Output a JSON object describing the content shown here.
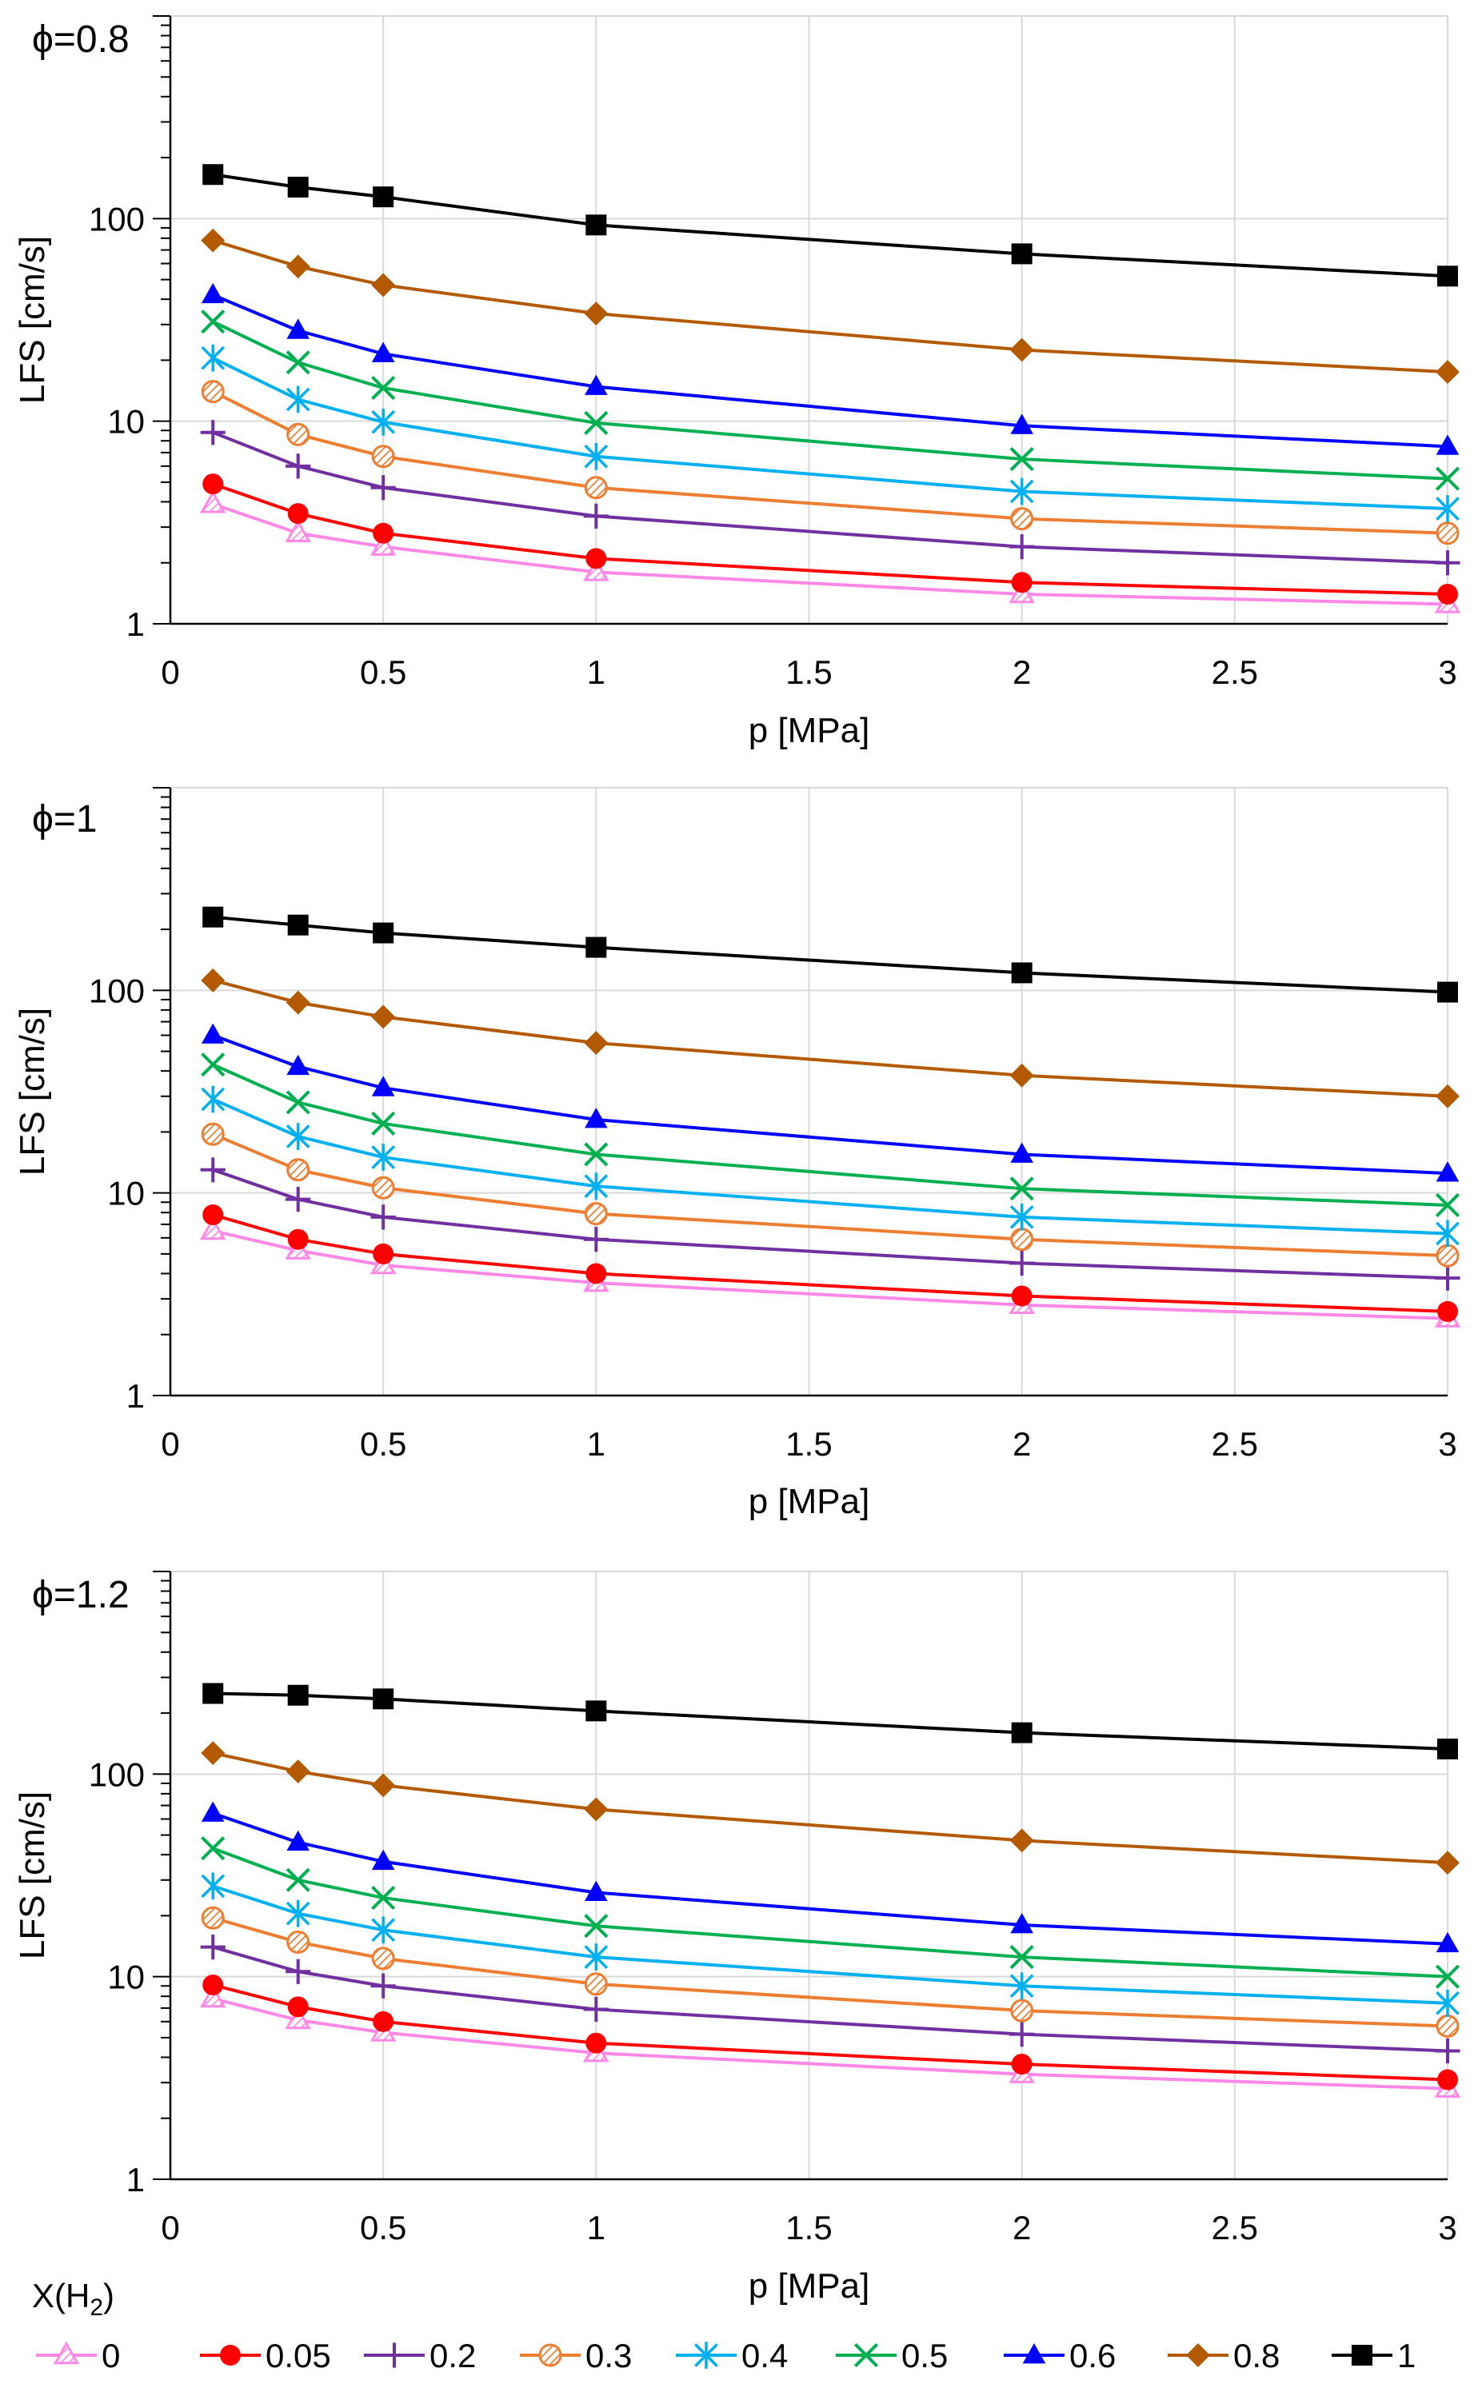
{
  "figure_title": "",
  "legend": {
    "title_main": "X(H",
    "title_sub": "2",
    "title_close": ")"
  },
  "series_styles": [
    {
      "name": "0",
      "color": "#ff88e6",
      "marker": "triangle-hatched"
    },
    {
      "name": "0.05",
      "color": "#ff0000",
      "marker": "circle"
    },
    {
      "name": "0.2",
      "color": "#7030a0",
      "marker": "plus"
    },
    {
      "name": "0.3",
      "color": "#ed7d31",
      "marker": "circle-hatched"
    },
    {
      "name": "0.4",
      "color": "#00b0f0",
      "marker": "asterisk"
    },
    {
      "name": "0.5",
      "color": "#00b050",
      "marker": "x"
    },
    {
      "name": "0.6",
      "color": "#0000ff",
      "marker": "triangle"
    },
    {
      "name": "0.8",
      "color": "#b35a00",
      "marker": "diamond"
    },
    {
      "name": "1",
      "color": "#000000",
      "marker": "square"
    }
  ],
  "chart_data": [
    {
      "type": "line",
      "title": "ϕ=0.8",
      "xlabel": "p [MPa]",
      "ylabel": "LFS [cm/s]",
      "xlim": [
        0,
        3
      ],
      "ylim": [
        1,
        1000
      ],
      "yscale": "log",
      "xticks": [
        "0",
        "0.5",
        "1",
        "1.5",
        "2",
        "2.5",
        "3"
      ],
      "yticks": [
        "1",
        "10",
        "100"
      ],
      "x": [
        0.1,
        0.3,
        0.5,
        1,
        2,
        3
      ],
      "series": [
        {
          "name": "0",
          "values": [
            3.9,
            2.8,
            2.4,
            1.8,
            1.4,
            1.25
          ]
        },
        {
          "name": "0.05",
          "values": [
            4.9,
            3.5,
            2.8,
            2.1,
            1.6,
            1.4
          ]
        },
        {
          "name": "0.2",
          "values": [
            8.8,
            6.0,
            4.7,
            3.4,
            2.4,
            2.0
          ]
        },
        {
          "name": "0.3",
          "values": [
            14,
            8.6,
            6.7,
            4.7,
            3.3,
            2.8
          ]
        },
        {
          "name": "0.4",
          "values": [
            20.5,
            12.8,
            9.9,
            6.7,
            4.5,
            3.7
          ]
        },
        {
          "name": "0.5",
          "values": [
            31,
            19.5,
            14.6,
            9.8,
            6.5,
            5.2
          ]
        },
        {
          "name": "0.6",
          "values": [
            42,
            28,
            21.5,
            14.8,
            9.5,
            7.5
          ]
        },
        {
          "name": "0.8",
          "values": [
            78,
            58,
            47,
            34,
            22.5,
            17.5
          ]
        },
        {
          "name": "1",
          "values": [
            165,
            143,
            128,
            93,
            67,
            52
          ]
        }
      ]
    },
    {
      "type": "line",
      "title": "ϕ=1",
      "xlabel": "p [MPa]",
      "ylabel": "LFS [cm/s]",
      "xlim": [
        0,
        3
      ],
      "ylim": [
        1,
        1000
      ],
      "yscale": "log",
      "xticks": [
        "0",
        "0.5",
        "1",
        "1.5",
        "2",
        "2.5",
        "3"
      ],
      "yticks": [
        "1",
        "10",
        "100"
      ],
      "x": [
        0.1,
        0.3,
        0.5,
        1,
        2,
        3
      ],
      "series": [
        {
          "name": "0",
          "values": [
            6.5,
            5.2,
            4.4,
            3.6,
            2.8,
            2.4
          ]
        },
        {
          "name": "0.05",
          "values": [
            7.8,
            5.9,
            5.0,
            4.0,
            3.1,
            2.6
          ]
        },
        {
          "name": "0.2",
          "values": [
            13,
            9.3,
            7.6,
            5.9,
            4.5,
            3.8
          ]
        },
        {
          "name": "0.3",
          "values": [
            19.5,
            13,
            10.6,
            7.9,
            5.9,
            4.9
          ]
        },
        {
          "name": "0.4",
          "values": [
            29,
            19,
            15,
            10.8,
            7.6,
            6.3
          ]
        },
        {
          "name": "0.5",
          "values": [
            43,
            28,
            22,
            15.5,
            10.5,
            8.7
          ]
        },
        {
          "name": "0.6",
          "values": [
            60,
            42,
            33,
            23,
            15.5,
            12.5
          ]
        },
        {
          "name": "0.8",
          "values": [
            112,
            87,
            74,
            55,
            38,
            30
          ]
        },
        {
          "name": "1",
          "values": [
            230,
            210,
            192,
            163,
            122,
            98
          ]
        }
      ]
    },
    {
      "type": "line",
      "title": "ϕ=1.2",
      "xlabel": "p [MPa]",
      "ylabel": "LFS [cm/s]",
      "xlim": [
        0,
        3
      ],
      "ylim": [
        1,
        1000
      ],
      "yscale": "log",
      "xticks": [
        "0",
        "0.5",
        "1",
        "1.5",
        "2",
        "2.5",
        "3"
      ],
      "yticks": [
        "1",
        "10",
        "100"
      ],
      "x": [
        0.1,
        0.3,
        0.5,
        1,
        2,
        3
      ],
      "series": [
        {
          "name": "0",
          "values": [
            7.8,
            6.1,
            5.3,
            4.2,
            3.3,
            2.8
          ]
        },
        {
          "name": "0.05",
          "values": [
            9.1,
            7.1,
            6.0,
            4.7,
            3.7,
            3.1
          ]
        },
        {
          "name": "0.2",
          "values": [
            14,
            10.6,
            9.0,
            6.9,
            5.2,
            4.3
          ]
        },
        {
          "name": "0.3",
          "values": [
            19.5,
            14.8,
            12.3,
            9.2,
            6.8,
            5.7
          ]
        },
        {
          "name": "0.4",
          "values": [
            28,
            20.5,
            17,
            12.5,
            9.0,
            7.4
          ]
        },
        {
          "name": "0.5",
          "values": [
            43,
            30,
            24.5,
            17.8,
            12.5,
            10
          ]
        },
        {
          "name": "0.6",
          "values": [
            64,
            46,
            37,
            26,
            18,
            14.5
          ]
        },
        {
          "name": "0.8",
          "values": [
            127,
            103,
            88,
            67,
            47,
            36.5
          ]
        },
        {
          "name": "1",
          "values": [
            250,
            245,
            235,
            205,
            160,
            133
          ]
        }
      ]
    }
  ]
}
